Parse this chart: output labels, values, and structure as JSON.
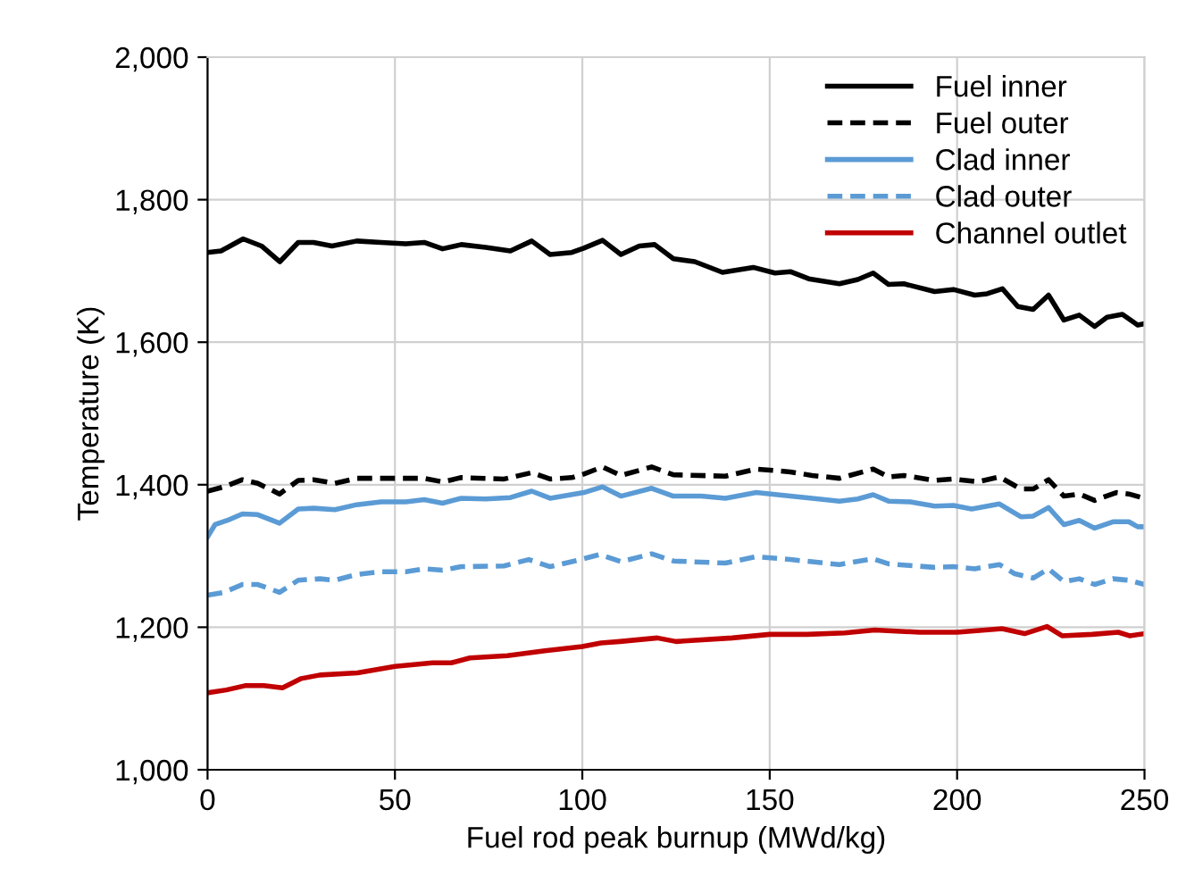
{
  "chart_data": {
    "type": "line",
    "xlabel": "Fuel rod peak burnup (MWd/kg)",
    "ylabel": "Temperature (K)",
    "xlim": [
      0,
      250
    ],
    "xticks": [
      0,
      50,
      100,
      150,
      200,
      250
    ],
    "ylim": [
      1000,
      2000
    ],
    "yticks": [
      {
        "value": 1000,
        "label": "1,000"
      },
      {
        "value": 1200,
        "label": "1,200"
      },
      {
        "value": 1400,
        "label": "1,400"
      },
      {
        "value": 1600,
        "label": "1,600"
      },
      {
        "value": 1800,
        "label": "1,800"
      },
      {
        "value": 2000,
        "label": "2,000"
      }
    ],
    "grid": true,
    "legend": "top right",
    "marker": "none",
    "series": [
      {
        "name": "Fuel inner",
        "color": "#000000",
        "line_style": "solid",
        "x": [
          0,
          3.6,
          9.5,
          14.4,
          19.3,
          24.2,
          28.3,
          33.2,
          39.8,
          46.3,
          52.9,
          57.8,
          62.7,
          67.7,
          74.2,
          80.8,
          86.5,
          91.4,
          97.2,
          100.4,
          105.4,
          110.3,
          115.2,
          119.3,
          124.3,
          130,
          137.4,
          145.6,
          151.4,
          155.5,
          160.4,
          168.6,
          173.5,
          177.6,
          181.7,
          185.8,
          194,
          199,
          204.7,
          208,
          212.1,
          216.2,
          220.3,
          224.4,
          228.5,
          232.6,
          236.7,
          240,
          244.1,
          248.2,
          250
        ],
        "values": [
          1726,
          1728,
          1745,
          1735,
          1713,
          1740,
          1740,
          1735,
          1742,
          1740,
          1738,
          1740,
          1731,
          1737,
          1733,
          1728,
          1742,
          1723,
          1726,
          1732,
          1743,
          1723,
          1735,
          1737,
          1717,
          1713,
          1698,
          1705,
          1697,
          1699,
          1689,
          1682,
          1688,
          1697,
          1681,
          1682,
          1671,
          1674,
          1666,
          1668,
          1675,
          1650,
          1646,
          1666,
          1631,
          1638,
          1622,
          1635,
          1639,
          1624,
          1626
        ]
      },
      {
        "name": "Fuel outer",
        "color": "#000000",
        "line_style": "dashed",
        "x": [
          0,
          4.4,
          9.3,
          13.4,
          19.2,
          24.2,
          28.3,
          34,
          39.8,
          49.7,
          57.8,
          62.7,
          67.7,
          79.1,
          86.5,
          91.4,
          97.2,
          100.4,
          105.4,
          110.3,
          118.5,
          124.3,
          138.2,
          146.4,
          155.5,
          161.3,
          168.6,
          177.6,
          181.7,
          185.8,
          194,
          199,
          205.6,
          211.3,
          217,
          220.3,
          224.4,
          228.5,
          232.6,
          236.7,
          242.5,
          245.8,
          250
        ],
        "values": [
          1391,
          1397,
          1407,
          1402,
          1387,
          1406,
          1407,
          1402,
          1409,
          1409,
          1409,
          1404,
          1410,
          1408,
          1417,
          1408,
          1410,
          1415,
          1425,
          1413,
          1425,
          1414,
          1412,
          1422,
          1418,
          1413,
          1409,
          1422,
          1411,
          1413,
          1406,
          1408,
          1404,
          1411,
          1394,
          1394,
          1407,
          1384,
          1387,
          1378,
          1389,
          1387,
          1381
        ]
      },
      {
        "name": "Clad inner",
        "color": "#5b9bd5",
        "line_style": "solid",
        "x": [
          0,
          2,
          5.3,
          9.3,
          13.4,
          19.2,
          24.2,
          28.3,
          34,
          39.8,
          46.3,
          52.9,
          57.8,
          62.7,
          67.7,
          74.2,
          80.8,
          86.5,
          91.4,
          100.4,
          105.4,
          110.3,
          118.5,
          124.3,
          131.7,
          138.2,
          146.4,
          155.5,
          161.3,
          168.6,
          173.5,
          177.6,
          181.7,
          187.5,
          194,
          199,
          203.9,
          211.3,
          217,
          220.3,
          224.4,
          228.5,
          232.6,
          236.7,
          241.6,
          245.8,
          248.2,
          250
        ],
        "values": [
          1327,
          1344,
          1350,
          1359,
          1358,
          1346,
          1366,
          1367,
          1365,
          1372,
          1376,
          1376,
          1379,
          1374,
          1381,
          1380,
          1382,
          1391,
          1381,
          1389,
          1397,
          1384,
          1395,
          1384,
          1384,
          1381,
          1389,
          1384,
          1381,
          1377,
          1380,
          1386,
          1377,
          1376,
          1370,
          1371,
          1366,
          1373,
          1355,
          1356,
          1368,
          1344,
          1350,
          1339,
          1348,
          1348,
          1341,
          1341
        ]
      },
      {
        "name": "Clad outer",
        "color": "#5b9bd5",
        "line_style": "dashed",
        "x": [
          0,
          4.4,
          9.3,
          13.4,
          19.2,
          24.2,
          30,
          34,
          39.8,
          46.3,
          52.9,
          57.8,
          62.7,
          67.7,
          79.1,
          85.7,
          91.4,
          98.8,
          104.6,
          110.3,
          118.5,
          124.3,
          138.2,
          146.4,
          155.5,
          168.6,
          177.6,
          181.7,
          194,
          199,
          204.7,
          211.3,
          215.4,
          220.3,
          224.4,
          228.5,
          232.6,
          236.7,
          241.6,
          245.8,
          250
        ],
        "values": [
          1245,
          1249,
          1260,
          1260,
          1249,
          1266,
          1268,
          1266,
          1274,
          1278,
          1278,
          1282,
          1280,
          1285,
          1286,
          1295,
          1285,
          1294,
          1302,
          1292,
          1303,
          1293,
          1290,
          1299,
          1295,
          1288,
          1296,
          1289,
          1284,
          1285,
          1282,
          1288,
          1275,
          1269,
          1282,
          1264,
          1268,
          1260,
          1268,
          1266,
          1260
        ]
      },
      {
        "name": "Channel outlet",
        "color": "#c00000",
        "line_style": "solid",
        "x": [
          0,
          5,
          10,
          15,
          20,
          25,
          30,
          40,
          50,
          60,
          65,
          70,
          80,
          90,
          100,
          105,
          110,
          120,
          125,
          140,
          150,
          160,
          170,
          178,
          190,
          200,
          212,
          218,
          224,
          228,
          236,
          243,
          246,
          250
        ],
        "values": [
          1108,
          1112,
          1118,
          1118,
          1115,
          1128,
          1133,
          1136,
          1145,
          1150,
          1150,
          1157,
          1160,
          1167,
          1173,
          1178,
          1180,
          1185,
          1180,
          1185,
          1190,
          1190,
          1192,
          1196,
          1193,
          1193,
          1198,
          1191,
          1201,
          1188,
          1190,
          1193,
          1188,
          1191
        ]
      }
    ]
  }
}
